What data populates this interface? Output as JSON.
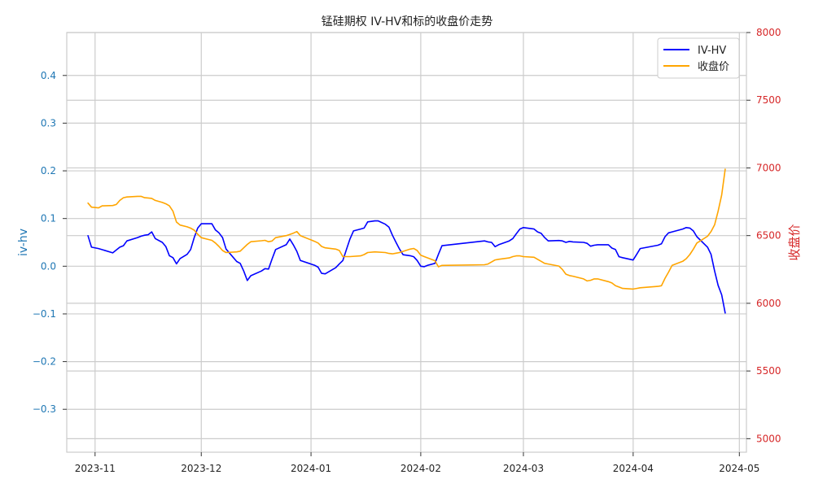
{
  "chart_data": {
    "type": "line",
    "title": "锰硅期权 IV-HV和标的收盘价走势",
    "xlabel": "",
    "ylabel_left": "iv-hv",
    "ylabel_right": "收盘价",
    "x_ticks": [
      "2023-11",
      "2023-12",
      "2024-01",
      "2024-02",
      "2024-03",
      "2024-04",
      "2024-05"
    ],
    "y_left_ticks": [
      "−0.3",
      "−0.2",
      "−0.1",
      "0.0",
      "0.1",
      "0.2",
      "0.3",
      "0.4"
    ],
    "y_right_ticks": [
      "5000",
      "5500",
      "6000",
      "6500",
      "7000",
      "7500",
      "8000"
    ],
    "ylim_left": [
      -0.39,
      0.49
    ],
    "ylim_right": [
      4900,
      8000
    ],
    "grid": true,
    "legend_position": "top-right",
    "colors": {
      "left_axis": "#1f77b4",
      "right_axis": "#d62728",
      "iv_hv": "#0000ff",
      "close": "#ffa500",
      "grid": "#cccccc",
      "frame": "#cccccc"
    },
    "series": [
      {
        "name": "IV-HV",
        "axis": "left",
        "points": [
          [
            "2023-10-30",
            0.064
          ],
          [
            "2023-10-31",
            0.04
          ],
          [
            "2023-11-02",
            0.037
          ],
          [
            "2023-11-06",
            0.028
          ],
          [
            "2023-11-08",
            0.04
          ],
          [
            "2023-11-09",
            0.043
          ],
          [
            "2023-11-10",
            0.053
          ],
          [
            "2023-11-13",
            0.06
          ],
          [
            "2023-11-14",
            0.063
          ],
          [
            "2023-11-15",
            0.065
          ],
          [
            "2023-11-16",
            0.066
          ],
          [
            "2023-11-17",
            0.072
          ],
          [
            "2023-11-18",
            0.058
          ],
          [
            "2023-11-20",
            0.05
          ],
          [
            "2023-11-21",
            0.041
          ],
          [
            "2023-11-22",
            0.022
          ],
          [
            "2023-11-23",
            0.018
          ],
          [
            "2023-11-24",
            0.005
          ],
          [
            "2023-11-25",
            0.016
          ],
          [
            "2023-11-27",
            0.025
          ],
          [
            "2023-11-28",
            0.035
          ],
          [
            "2023-11-29",
            0.06
          ],
          [
            "2023-11-30",
            0.08
          ],
          [
            "2023-12-01",
            0.089
          ],
          [
            "2023-12-04",
            0.089
          ],
          [
            "2023-12-05",
            0.076
          ],
          [
            "2023-12-06",
            0.07
          ],
          [
            "2023-12-07",
            0.06
          ],
          [
            "2023-12-08",
            0.036
          ],
          [
            "2023-12-11",
            0.01
          ],
          [
            "2023-12-12",
            0.006
          ],
          [
            "2023-12-13",
            -0.01
          ],
          [
            "2023-12-14",
            -0.03
          ],
          [
            "2023-12-15",
            -0.02
          ],
          [
            "2023-12-18",
            -0.01
          ],
          [
            "2023-12-19",
            -0.005
          ],
          [
            "2023-12-20",
            -0.006
          ],
          [
            "2023-12-21",
            0.015
          ],
          [
            "2023-12-22",
            0.035
          ],
          [
            "2023-12-25",
            0.045
          ],
          [
            "2023-12-26",
            0.057
          ],
          [
            "2023-12-27",
            0.045
          ],
          [
            "2023-12-28",
            0.031
          ],
          [
            "2023-12-29",
            0.012
          ],
          [
            "2024-01-02",
            0.002
          ],
          [
            "2024-01-03",
            -0.002
          ],
          [
            "2024-01-04",
            -0.015
          ],
          [
            "2024-01-05",
            -0.016
          ],
          [
            "2024-01-08",
            -0.003
          ],
          [
            "2024-01-09",
            0.005
          ],
          [
            "2024-01-10",
            0.012
          ],
          [
            "2024-01-11",
            0.035
          ],
          [
            "2024-01-12",
            0.057
          ],
          [
            "2024-01-13",
            0.074
          ],
          [
            "2024-01-15",
            0.078
          ],
          [
            "2024-01-16",
            0.08
          ],
          [
            "2024-01-17",
            0.093
          ],
          [
            "2024-01-19",
            0.095
          ],
          [
            "2024-01-20",
            0.095
          ],
          [
            "2024-01-22",
            0.088
          ],
          [
            "2024-01-23",
            0.082
          ],
          [
            "2024-01-24",
            0.065
          ],
          [
            "2024-01-25",
            0.05
          ],
          [
            "2024-01-26",
            0.036
          ],
          [
            "2024-01-27",
            0.024
          ],
          [
            "2024-01-29",
            0.022
          ],
          [
            "2024-01-30",
            0.02
          ],
          [
            "2024-01-31",
            0.012
          ],
          [
            "2024-02-01",
            0.0
          ],
          [
            "2024-02-02",
            -0.001
          ],
          [
            "2024-02-03",
            0.002
          ],
          [
            "2024-02-05",
            0.006
          ],
          [
            "2024-02-06",
            0.025
          ],
          [
            "2024-02-07",
            0.043
          ],
          [
            "2024-02-19",
            0.053
          ],
          [
            "2024-02-20",
            0.051
          ],
          [
            "2024-02-21",
            0.05
          ],
          [
            "2024-02-22",
            0.041
          ],
          [
            "2024-02-23",
            0.045
          ],
          [
            "2024-02-26",
            0.053
          ],
          [
            "2024-02-27",
            0.058
          ],
          [
            "2024-02-28",
            0.068
          ],
          [
            "2024-02-29",
            0.078
          ],
          [
            "2024-03-01",
            0.081
          ],
          [
            "2024-03-04",
            0.078
          ],
          [
            "2024-03-05",
            0.072
          ],
          [
            "2024-03-06",
            0.069
          ],
          [
            "2024-03-07",
            0.06
          ],
          [
            "2024-03-08",
            0.053
          ],
          [
            "2024-03-11",
            0.054
          ],
          [
            "2024-03-12",
            0.053
          ],
          [
            "2024-03-13",
            0.05
          ],
          [
            "2024-03-14",
            0.052
          ],
          [
            "2024-03-15",
            0.051
          ],
          [
            "2024-03-18",
            0.05
          ],
          [
            "2024-03-19",
            0.048
          ],
          [
            "2024-03-20",
            0.042
          ],
          [
            "2024-03-21",
            0.044
          ],
          [
            "2024-03-22",
            0.045
          ],
          [
            "2024-03-25",
            0.045
          ],
          [
            "2024-03-26",
            0.038
          ],
          [
            "2024-03-27",
            0.035
          ],
          [
            "2024-03-28",
            0.02
          ],
          [
            "2024-03-29",
            0.018
          ],
          [
            "2024-04-01",
            0.013
          ],
          [
            "2024-04-02",
            0.025
          ],
          [
            "2024-04-03",
            0.037
          ],
          [
            "2024-04-08",
            0.044
          ],
          [
            "2024-04-09",
            0.047
          ],
          [
            "2024-04-10",
            0.062
          ],
          [
            "2024-04-11",
            0.07
          ],
          [
            "2024-04-12",
            0.072
          ],
          [
            "2024-04-15",
            0.078
          ],
          [
            "2024-04-16",
            0.081
          ],
          [
            "2024-04-17",
            0.08
          ],
          [
            "2024-04-18",
            0.074
          ],
          [
            "2024-04-19",
            0.062
          ],
          [
            "2024-04-22",
            0.04
          ],
          [
            "2024-04-23",
            0.025
          ],
          [
            "2024-04-24",
            -0.01
          ],
          [
            "2024-04-25",
            -0.04
          ],
          [
            "2024-04-26",
            -0.06
          ],
          [
            "2024-04-27",
            -0.098
          ]
        ]
      },
      {
        "name": "收盘价",
        "axis": "right",
        "points": [
          [
            "2023-10-30",
            6740
          ],
          [
            "2023-10-31",
            6710
          ],
          [
            "2023-11-02",
            6705
          ],
          [
            "2023-11-03",
            6720
          ],
          [
            "2023-11-06",
            6722
          ],
          [
            "2023-11-07",
            6730
          ],
          [
            "2023-11-08",
            6760
          ],
          [
            "2023-11-09",
            6780
          ],
          [
            "2023-11-10",
            6785
          ],
          [
            "2023-11-13",
            6790
          ],
          [
            "2023-11-14",
            6790
          ],
          [
            "2023-11-15",
            6780
          ],
          [
            "2023-11-16",
            6778
          ],
          [
            "2023-11-17",
            6775
          ],
          [
            "2023-11-18",
            6760
          ],
          [
            "2023-11-20",
            6745
          ],
          [
            "2023-11-21",
            6735
          ],
          [
            "2023-11-22",
            6720
          ],
          [
            "2023-11-23",
            6680
          ],
          [
            "2023-11-24",
            6600
          ],
          [
            "2023-11-25",
            6578
          ],
          [
            "2023-11-27",
            6565
          ],
          [
            "2023-11-28",
            6555
          ],
          [
            "2023-11-29",
            6540
          ],
          [
            "2023-11-30",
            6510
          ],
          [
            "2023-12-01",
            6485
          ],
          [
            "2023-12-04",
            6465
          ],
          [
            "2023-12-05",
            6445
          ],
          [
            "2023-12-06",
            6420
          ],
          [
            "2023-12-07",
            6390
          ],
          [
            "2023-12-08",
            6375
          ],
          [
            "2023-12-11",
            6380
          ],
          [
            "2023-12-12",
            6385
          ],
          [
            "2023-12-13",
            6410
          ],
          [
            "2023-12-14",
            6435
          ],
          [
            "2023-12-15",
            6455
          ],
          [
            "2023-12-18",
            6462
          ],
          [
            "2023-12-19",
            6465
          ],
          [
            "2023-12-20",
            6455
          ],
          [
            "2023-12-21",
            6460
          ],
          [
            "2023-12-22",
            6485
          ],
          [
            "2023-12-25",
            6500
          ],
          [
            "2023-12-26",
            6508
          ],
          [
            "2023-12-27",
            6518
          ],
          [
            "2023-12-28",
            6530
          ],
          [
            "2023-12-29",
            6500
          ],
          [
            "2024-01-02",
            6458
          ],
          [
            "2024-01-03",
            6445
          ],
          [
            "2024-01-04",
            6420
          ],
          [
            "2024-01-05",
            6410
          ],
          [
            "2024-01-08",
            6400
          ],
          [
            "2024-01-09",
            6390
          ],
          [
            "2024-01-10",
            6345
          ],
          [
            "2024-01-11",
            6345
          ],
          [
            "2024-01-12",
            6345
          ],
          [
            "2024-01-15",
            6350
          ],
          [
            "2024-01-16",
            6360
          ],
          [
            "2024-01-17",
            6375
          ],
          [
            "2024-01-19",
            6380
          ],
          [
            "2024-01-22",
            6375
          ],
          [
            "2024-01-23",
            6368
          ],
          [
            "2024-01-24",
            6365
          ],
          [
            "2024-01-25",
            6370
          ],
          [
            "2024-01-26",
            6375
          ],
          [
            "2024-01-29",
            6400
          ],
          [
            "2024-01-30",
            6405
          ],
          [
            "2024-01-31",
            6390
          ],
          [
            "2024-02-01",
            6355
          ],
          [
            "2024-02-02",
            6345
          ],
          [
            "2024-02-05",
            6315
          ],
          [
            "2024-02-06",
            6270
          ],
          [
            "2024-02-07",
            6280
          ],
          [
            "2024-02-19",
            6285
          ],
          [
            "2024-02-20",
            6290
          ],
          [
            "2024-02-21",
            6305
          ],
          [
            "2024-02-22",
            6320
          ],
          [
            "2024-02-23",
            6325
          ],
          [
            "2024-02-26",
            6335
          ],
          [
            "2024-02-27",
            6345
          ],
          [
            "2024-02-28",
            6350
          ],
          [
            "2024-02-29",
            6350
          ],
          [
            "2024-03-01",
            6345
          ],
          [
            "2024-03-04",
            6340
          ],
          [
            "2024-03-05",
            6325
          ],
          [
            "2024-03-06",
            6310
          ],
          [
            "2024-03-07",
            6295
          ],
          [
            "2024-03-08",
            6290
          ],
          [
            "2024-03-11",
            6275
          ],
          [
            "2024-03-12",
            6250
          ],
          [
            "2024-03-13",
            6215
          ],
          [
            "2024-03-14",
            6205
          ],
          [
            "2024-03-15",
            6200
          ],
          [
            "2024-03-18",
            6180
          ],
          [
            "2024-03-19",
            6165
          ],
          [
            "2024-03-20",
            6170
          ],
          [
            "2024-03-21",
            6180
          ],
          [
            "2024-03-22",
            6180
          ],
          [
            "2024-03-25",
            6160
          ],
          [
            "2024-03-26",
            6150
          ],
          [
            "2024-03-27",
            6130
          ],
          [
            "2024-03-28",
            6120
          ],
          [
            "2024-03-29",
            6110
          ],
          [
            "2024-04-01",
            6105
          ],
          [
            "2024-04-02",
            6110
          ],
          [
            "2024-04-03",
            6115
          ],
          [
            "2024-04-08",
            6125
          ],
          [
            "2024-04-09",
            6130
          ],
          [
            "2024-04-10",
            6185
          ],
          [
            "2024-04-11",
            6230
          ],
          [
            "2024-04-12",
            6280
          ],
          [
            "2024-04-15",
            6310
          ],
          [
            "2024-04-16",
            6330
          ],
          [
            "2024-04-17",
            6360
          ],
          [
            "2024-04-18",
            6400
          ],
          [
            "2024-04-19",
            6445
          ],
          [
            "2024-04-22",
            6495
          ],
          [
            "2024-04-23",
            6530
          ],
          [
            "2024-04-24",
            6580
          ],
          [
            "2024-04-25",
            6680
          ],
          [
            "2024-04-26",
            6800
          ],
          [
            "2024-04-27",
            6990
          ]
        ]
      }
    ]
  }
}
